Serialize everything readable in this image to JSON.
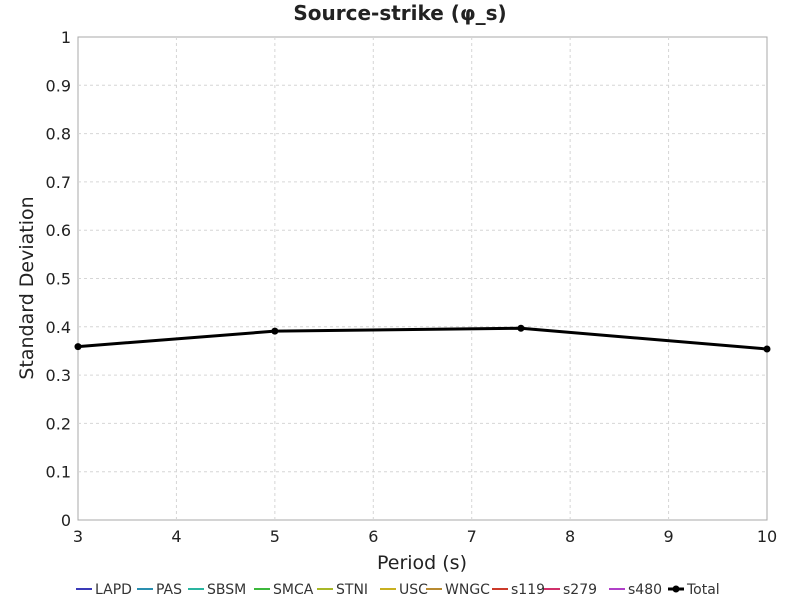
{
  "chart_data": {
    "type": "line",
    "title": "Source-strike (φ_s)",
    "xlabel": "Period (s)",
    "ylabel": "Standard Deviation",
    "xlim": [
      3,
      10
    ],
    "ylim": [
      0,
      1
    ],
    "xticks": [
      3,
      4,
      5,
      6,
      7,
      8,
      9,
      10
    ],
    "yticks": [
      0,
      0.1,
      0.2,
      0.3,
      0.4,
      0.5,
      0.6,
      0.7,
      0.8,
      0.9,
      1
    ],
    "grid": true,
    "legend_position": "bottom",
    "legend": [
      {
        "name": "LAPD",
        "color": "#3a3ab8"
      },
      {
        "name": "PAS",
        "color": "#2a8fb0"
      },
      {
        "name": "SBSM",
        "color": "#2ab5a0"
      },
      {
        "name": "SMCA",
        "color": "#3cb83c"
      },
      {
        "name": "STNI",
        "color": "#a8b828"
      },
      {
        "name": "USC",
        "color": "#c8b020"
      },
      {
        "name": "WNGC",
        "color": "#b88a30"
      },
      {
        "name": "s119",
        "color": "#cc3a2a"
      },
      {
        "name": "s279",
        "color": "#d0306a"
      },
      {
        "name": "s480",
        "color": "#b040c8"
      },
      {
        "name": "Total",
        "color": "#000000",
        "markers": true
      }
    ],
    "series": [
      {
        "name": "Total",
        "color": "#000000",
        "x": [
          3,
          5,
          7.5,
          10
        ],
        "y": [
          0.359,
          0.391,
          0.397,
          0.354
        ]
      }
    ]
  }
}
